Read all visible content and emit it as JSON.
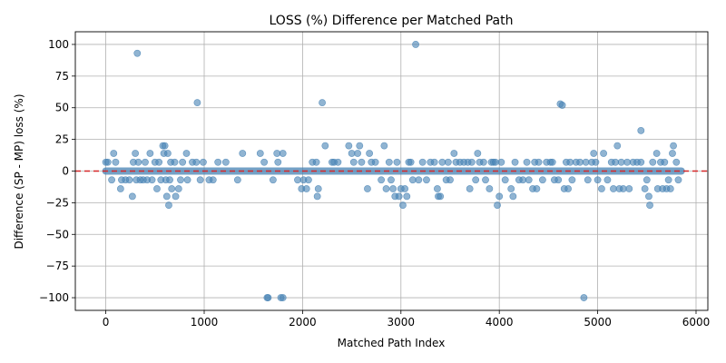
{
  "chart_data": {
    "type": "scatter",
    "title": "LOSS (%) Difference per Matched Path",
    "xlabel": "Matched Path Index",
    "ylabel": "Difference (SP - MP) loss (%)",
    "xlim": [
      -310,
      6120
    ],
    "ylim": [
      -110,
      110
    ],
    "xticks": [
      0,
      1000,
      2000,
      3000,
      4000,
      5000,
      6000
    ],
    "yticks": [
      -100,
      -75,
      -50,
      -25,
      0,
      25,
      50,
      75,
      100
    ],
    "grid": true,
    "reference_line": {
      "y": 0,
      "color": "#d62728",
      "style": "dashed"
    },
    "colors": {
      "points": "#4682b4",
      "grid": "#b0b0b0",
      "axes": "#000000"
    },
    "n_points": 5850,
    "baseline": {
      "y": 0,
      "x_range": [
        0,
        5850
      ]
    },
    "notable_points": [
      {
        "x": 320,
        "y": 93
      },
      {
        "x": 930,
        "y": 54
      },
      {
        "x": 2200,
        "y": 54
      },
      {
        "x": 3150,
        "y": 100
      },
      {
        "x": 4620,
        "y": 53
      },
      {
        "x": 4640,
        "y": 52
      },
      {
        "x": 5440,
        "y": 32
      },
      {
        "x": 1640,
        "y": -100
      },
      {
        "x": 1650,
        "y": -100
      },
      {
        "x": 1780,
        "y": -100
      },
      {
        "x": 1800,
        "y": -100
      },
      {
        "x": 4860,
        "y": -100
      }
    ],
    "points": [
      [
        0,
        7
      ],
      [
        20,
        7
      ],
      [
        60,
        -7
      ],
      [
        80,
        14
      ],
      [
        100,
        7
      ],
      [
        150,
        -14
      ],
      [
        160,
        -7
      ],
      [
        200,
        -7
      ],
      [
        240,
        -7
      ],
      [
        270,
        -20
      ],
      [
        280,
        7
      ],
      [
        300,
        14
      ],
      [
        310,
        -7
      ],
      [
        330,
        7
      ],
      [
        350,
        -7
      ],
      [
        380,
        -7
      ],
      [
        400,
        7
      ],
      [
        420,
        -7
      ],
      [
        450,
        14
      ],
      [
        470,
        -7
      ],
      [
        500,
        7
      ],
      [
        520,
        -14
      ],
      [
        540,
        7
      ],
      [
        560,
        -7
      ],
      [
        580,
        20
      ],
      [
        590,
        14
      ],
      [
        600,
        20
      ],
      [
        610,
        -7
      ],
      [
        620,
        -20
      ],
      [
        630,
        14
      ],
      [
        640,
        -27
      ],
      [
        650,
        -7
      ],
      [
        660,
        7
      ],
      [
        670,
        -14
      ],
      [
        700,
        7
      ],
      [
        710,
        -20
      ],
      [
        740,
        -14
      ],
      [
        760,
        -7
      ],
      [
        780,
        7
      ],
      [
        820,
        14
      ],
      [
        830,
        -7
      ],
      [
        880,
        7
      ],
      [
        920,
        7
      ],
      [
        960,
        -7
      ],
      [
        990,
        7
      ],
      [
        1050,
        -7
      ],
      [
        1090,
        -7
      ],
      [
        1140,
        7
      ],
      [
        1220,
        7
      ],
      [
        1340,
        -7
      ],
      [
        1390,
        14
      ],
      [
        1570,
        14
      ],
      [
        1610,
        7
      ],
      [
        1700,
        -7
      ],
      [
        1740,
        14
      ],
      [
        1750,
        7
      ],
      [
        1800,
        14
      ],
      [
        1950,
        -7
      ],
      [
        1990,
        -14
      ],
      [
        2010,
        -7
      ],
      [
        2040,
        -14
      ],
      [
        2060,
        -7
      ],
      [
        2100,
        7
      ],
      [
        2140,
        7
      ],
      [
        2150,
        -20
      ],
      [
        2160,
        -14
      ],
      [
        2230,
        20
      ],
      [
        2300,
        7
      ],
      [
        2320,
        7
      ],
      [
        2360,
        7
      ],
      [
        2470,
        20
      ],
      [
        2500,
        14
      ],
      [
        2520,
        7
      ],
      [
        2560,
        14
      ],
      [
        2580,
        20
      ],
      [
        2600,
        7
      ],
      [
        2660,
        -14
      ],
      [
        2680,
        14
      ],
      [
        2700,
        7
      ],
      [
        2740,
        7
      ],
      [
        2800,
        -7
      ],
      [
        2830,
        20
      ],
      [
        2850,
        -14
      ],
      [
        2880,
        7
      ],
      [
        2900,
        -7
      ],
      [
        2920,
        -14
      ],
      [
        2940,
        -20
      ],
      [
        2960,
        7
      ],
      [
        2980,
        -20
      ],
      [
        3000,
        -14
      ],
      [
        3020,
        -27
      ],
      [
        3040,
        -14
      ],
      [
        3060,
        -20
      ],
      [
        3080,
        7
      ],
      [
        3100,
        7
      ],
      [
        3120,
        -7
      ],
      [
        3180,
        -7
      ],
      [
        3220,
        7
      ],
      [
        3260,
        -7
      ],
      [
        3300,
        7
      ],
      [
        3340,
        7
      ],
      [
        3370,
        -14
      ],
      [
        3380,
        -20
      ],
      [
        3400,
        -20
      ],
      [
        3420,
        7
      ],
      [
        3460,
        -7
      ],
      [
        3480,
        7
      ],
      [
        3500,
        -7
      ],
      [
        3540,
        14
      ],
      [
        3560,
        7
      ],
      [
        3600,
        7
      ],
      [
        3640,
        7
      ],
      [
        3680,
        7
      ],
      [
        3700,
        -14
      ],
      [
        3720,
        7
      ],
      [
        3760,
        -7
      ],
      [
        3780,
        14
      ],
      [
        3800,
        7
      ],
      [
        3840,
        7
      ],
      [
        3860,
        -7
      ],
      [
        3900,
        -14
      ],
      [
        3920,
        7
      ],
      [
        3940,
        7
      ],
      [
        3960,
        7
      ],
      [
        3980,
        -27
      ],
      [
        4000,
        -20
      ],
      [
        4020,
        7
      ],
      [
        4060,
        -7
      ],
      [
        4120,
        -14
      ],
      [
        4140,
        -20
      ],
      [
        4160,
        7
      ],
      [
        4200,
        -7
      ],
      [
        4240,
        -7
      ],
      [
        4280,
        7
      ],
      [
        4300,
        -7
      ],
      [
        4340,
        -14
      ],
      [
        4360,
        7
      ],
      [
        4380,
        -14
      ],
      [
        4400,
        7
      ],
      [
        4440,
        -7
      ],
      [
        4480,
        7
      ],
      [
        4520,
        7
      ],
      [
        4540,
        7
      ],
      [
        4560,
        -7
      ],
      [
        4600,
        -7
      ],
      [
        4660,
        -14
      ],
      [
        4680,
        7
      ],
      [
        4700,
        -14
      ],
      [
        4720,
        7
      ],
      [
        4740,
        -7
      ],
      [
        4780,
        7
      ],
      [
        4820,
        7
      ],
      [
        4880,
        7
      ],
      [
        4900,
        -7
      ],
      [
        4940,
        7
      ],
      [
        4960,
        14
      ],
      [
        4980,
        7
      ],
      [
        5000,
        -7
      ],
      [
        5040,
        -14
      ],
      [
        5060,
        14
      ],
      [
        5100,
        -7
      ],
      [
        5140,
        7
      ],
      [
        5160,
        -14
      ],
      [
        5180,
        7
      ],
      [
        5200,
        20
      ],
      [
        5220,
        -14
      ],
      [
        5240,
        7
      ],
      [
        5260,
        -14
      ],
      [
        5300,
        7
      ],
      [
        5320,
        -14
      ],
      [
        5360,
        7
      ],
      [
        5400,
        7
      ],
      [
        5440,
        7
      ],
      [
        5480,
        -14
      ],
      [
        5500,
        -7
      ],
      [
        5520,
        -20
      ],
      [
        5530,
        -27
      ],
      [
        5560,
        7
      ],
      [
        5600,
        14
      ],
      [
        5610,
        -14
      ],
      [
        5640,
        7
      ],
      [
        5660,
        -14
      ],
      [
        5680,
        7
      ],
      [
        5700,
        -14
      ],
      [
        5720,
        -7
      ],
      [
        5740,
        -14
      ],
      [
        5760,
        14
      ],
      [
        5770,
        20
      ],
      [
        5800,
        7
      ],
      [
        5820,
        -7
      ]
    ]
  }
}
